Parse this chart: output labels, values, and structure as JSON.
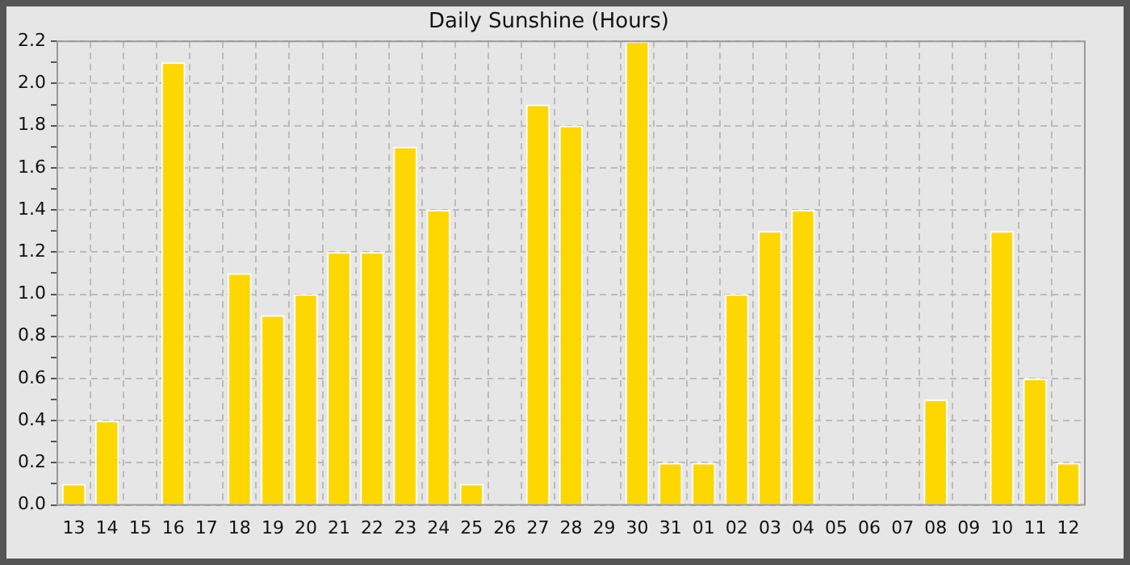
{
  "chart_data": {
    "type": "bar",
    "title": "Daily Sunshine (Hours)",
    "categories": [
      "13",
      "14",
      "15",
      "16",
      "17",
      "18",
      "19",
      "20",
      "21",
      "22",
      "23",
      "24",
      "25",
      "26",
      "27",
      "28",
      "29",
      "30",
      "31",
      "01",
      "02",
      "03",
      "04",
      "05",
      "06",
      "07",
      "08",
      "09",
      "10",
      "11",
      "12"
    ],
    "values": [
      0.1,
      0.4,
      0,
      2.1,
      0,
      1.1,
      0.9,
      1.0,
      1.2,
      1.2,
      1.7,
      1.4,
      0.1,
      0,
      1.9,
      1.8,
      0,
      2.2,
      0.2,
      0.2,
      1.0,
      1.3,
      1.4,
      0,
      0,
      0,
      0.5,
      0,
      1.3,
      0.6,
      0.2
    ],
    "color": "#ffd700",
    "ylim": [
      0,
      2.2
    ],
    "yticks": [
      {
        "value": 0,
        "label": "0.0"
      },
      {
        "value": 0.1,
        "label": null
      },
      {
        "value": 0.2,
        "label": "0.2"
      },
      {
        "value": 0.3,
        "label": null
      },
      {
        "value": 0.4,
        "label": "0.4"
      },
      {
        "value": 0.5,
        "label": null
      },
      {
        "value": 0.6,
        "label": "0.6"
      },
      {
        "value": 0.7,
        "label": null
      },
      {
        "value": 0.8,
        "label": "0.8"
      },
      {
        "value": 0.9,
        "label": null
      },
      {
        "value": 1.0,
        "label": "1.0"
      },
      {
        "value": 1.1,
        "label": null
      },
      {
        "value": 1.2,
        "label": "1.2"
      },
      {
        "value": 1.3,
        "label": null
      },
      {
        "value": 1.4,
        "label": "1.4"
      },
      {
        "value": 1.5,
        "label": null
      },
      {
        "value": 1.6,
        "label": "1.6"
      },
      {
        "value": 1.7,
        "label": null
      },
      {
        "value": 1.8,
        "label": "1.8"
      },
      {
        "value": 1.9,
        "label": null
      },
      {
        "value": 2.0,
        "label": "2.0"
      },
      {
        "value": 2.1,
        "label": null
      },
      {
        "value": 2.2,
        "label": "2.2"
      }
    ],
    "grid": true
  }
}
